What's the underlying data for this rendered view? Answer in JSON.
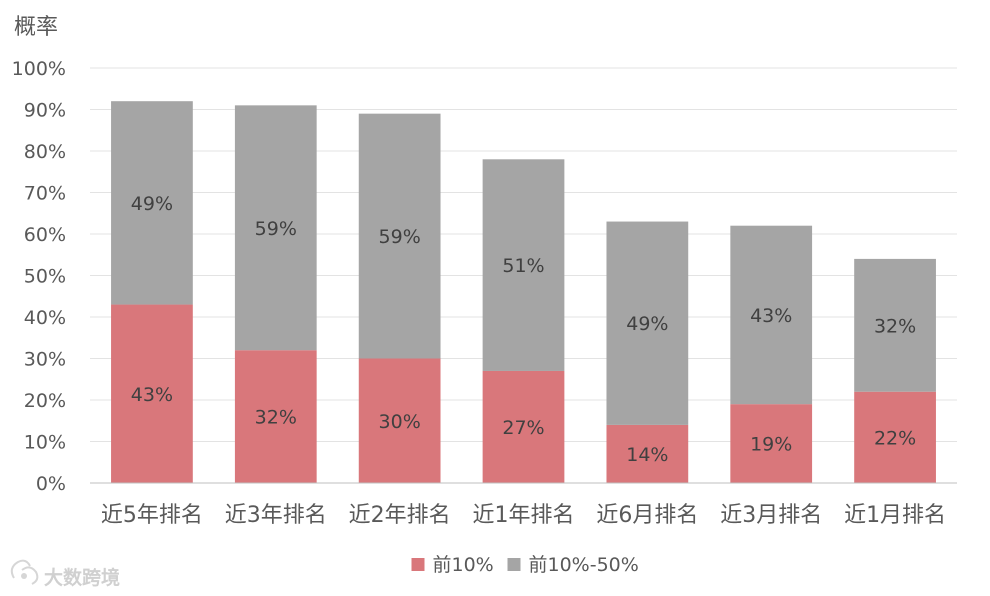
{
  "chart_data": {
    "type": "bar",
    "stacked": true,
    "ylabel": "概率",
    "ylim": [
      0,
      100
    ],
    "yticks": [
      "0%",
      "10%",
      "20%",
      "30%",
      "40%",
      "50%",
      "60%",
      "70%",
      "80%",
      "90%",
      "100%"
    ],
    "categories": [
      "近5年排名",
      "近3年排名",
      "近2年排名",
      "近1年排名",
      "近6月排名",
      "近3月排名",
      "近1月排名"
    ],
    "series": [
      {
        "name": "前10%",
        "color": "#d9777b",
        "values": [
          43,
          32,
          30,
          27,
          14,
          19,
          22
        ],
        "labels": [
          "43%",
          "32%",
          "30%",
          "27%",
          "14%",
          "19%",
          "22%"
        ]
      },
      {
        "name": "前10%-50%",
        "color": "#a5a5a5",
        "values": [
          49,
          59,
          59,
          51,
          49,
          43,
          32
        ],
        "labels": [
          "49%",
          "59%",
          "59%",
          "51%",
          "49%",
          "43%",
          "32%"
        ]
      }
    ],
    "grid": true,
    "legend_position": "bottom"
  },
  "watermark": {
    "text": "大数跨境"
  }
}
